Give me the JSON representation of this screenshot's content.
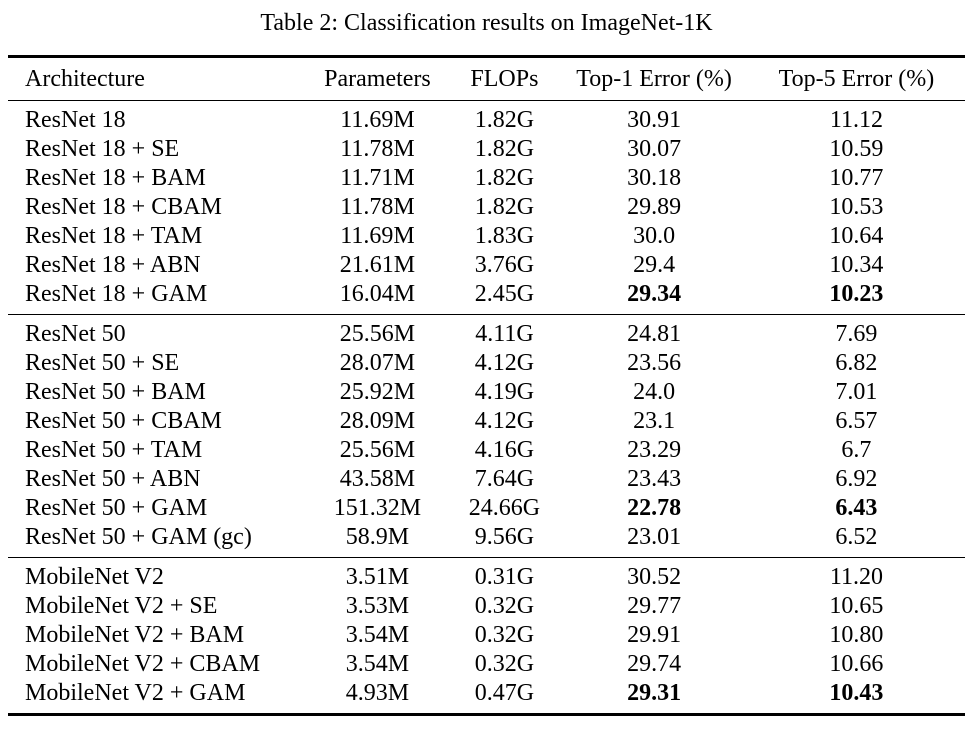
{
  "table": {
    "caption": "Table 2: Classification results on ImageNet-1K",
    "columns": [
      "Architecture",
      "Parameters",
      "FLOPs",
      "Top-1 Error (%)",
      "Top-5 Error (%)"
    ],
    "sections": [
      {
        "rows": [
          {
            "cells": [
              "ResNet 18",
              "11.69M",
              "1.82G",
              "30.91",
              "11.12"
            ],
            "bold": []
          },
          {
            "cells": [
              "ResNet 18 + SE",
              "11.78M",
              "1.82G",
              "30.07",
              "10.59"
            ],
            "bold": []
          },
          {
            "cells": [
              "ResNet 18 + BAM",
              "11.71M",
              "1.82G",
              "30.18",
              "10.77"
            ],
            "bold": []
          },
          {
            "cells": [
              "ResNet 18 + CBAM",
              "11.78M",
              "1.82G",
              "29.89",
              "10.53"
            ],
            "bold": []
          },
          {
            "cells": [
              "ResNet 18 + TAM",
              "11.69M",
              "1.83G",
              "30.0",
              "10.64"
            ],
            "bold": []
          },
          {
            "cells": [
              "ResNet 18 + ABN",
              "21.61M",
              "3.76G",
              "29.4",
              "10.34"
            ],
            "bold": []
          },
          {
            "cells": [
              "ResNet 18 + GAM",
              "16.04M",
              "2.45G",
              "29.34",
              "10.23"
            ],
            "bold": [
              3,
              4
            ]
          }
        ]
      },
      {
        "rows": [
          {
            "cells": [
              "ResNet 50",
              "25.56M",
              "4.11G",
              "24.81",
              "7.69"
            ],
            "bold": []
          },
          {
            "cells": [
              "ResNet 50 + SE",
              "28.07M",
              "4.12G",
              "23.56",
              "6.82"
            ],
            "bold": []
          },
          {
            "cells": [
              "ResNet 50 + BAM",
              "25.92M",
              "4.19G",
              "24.0",
              "7.01"
            ],
            "bold": []
          },
          {
            "cells": [
              "ResNet 50 + CBAM",
              "28.09M",
              "4.12G",
              "23.1",
              "6.57"
            ],
            "bold": []
          },
          {
            "cells": [
              "ResNet 50 + TAM",
              "25.56M",
              "4.16G",
              "23.29",
              "6.7"
            ],
            "bold": []
          },
          {
            "cells": [
              "ResNet 50 + ABN",
              "43.58M",
              "7.64G",
              "23.43",
              "6.92"
            ],
            "bold": []
          },
          {
            "cells": [
              "ResNet 50 + GAM",
              "151.32M",
              "24.66G",
              "22.78",
              "6.43"
            ],
            "bold": [
              3,
              4
            ]
          },
          {
            "cells": [
              "ResNet 50 + GAM (gc)",
              "58.9M",
              "9.56G",
              "23.01",
              "6.52"
            ],
            "bold": []
          }
        ]
      },
      {
        "rows": [
          {
            "cells": [
              "MobileNet V2",
              "3.51M",
              "0.31G",
              "30.52",
              "11.20"
            ],
            "bold": []
          },
          {
            "cells": [
              "MobileNet V2 + SE",
              "3.53M",
              "0.32G",
              "29.77",
              "10.65"
            ],
            "bold": []
          },
          {
            "cells": [
              "MobileNet V2 + BAM",
              "3.54M",
              "0.32G",
              "29.91",
              "10.80"
            ],
            "bold": []
          },
          {
            "cells": [
              "MobileNet V2 + CBAM",
              "3.54M",
              "0.32G",
              "29.74",
              "10.66"
            ],
            "bold": []
          },
          {
            "cells": [
              "MobileNet V2 + GAM",
              "4.93M",
              "0.47G",
              "29.31",
              "10.43"
            ],
            "bold": [
              3,
              4
            ]
          }
        ]
      }
    ]
  }
}
